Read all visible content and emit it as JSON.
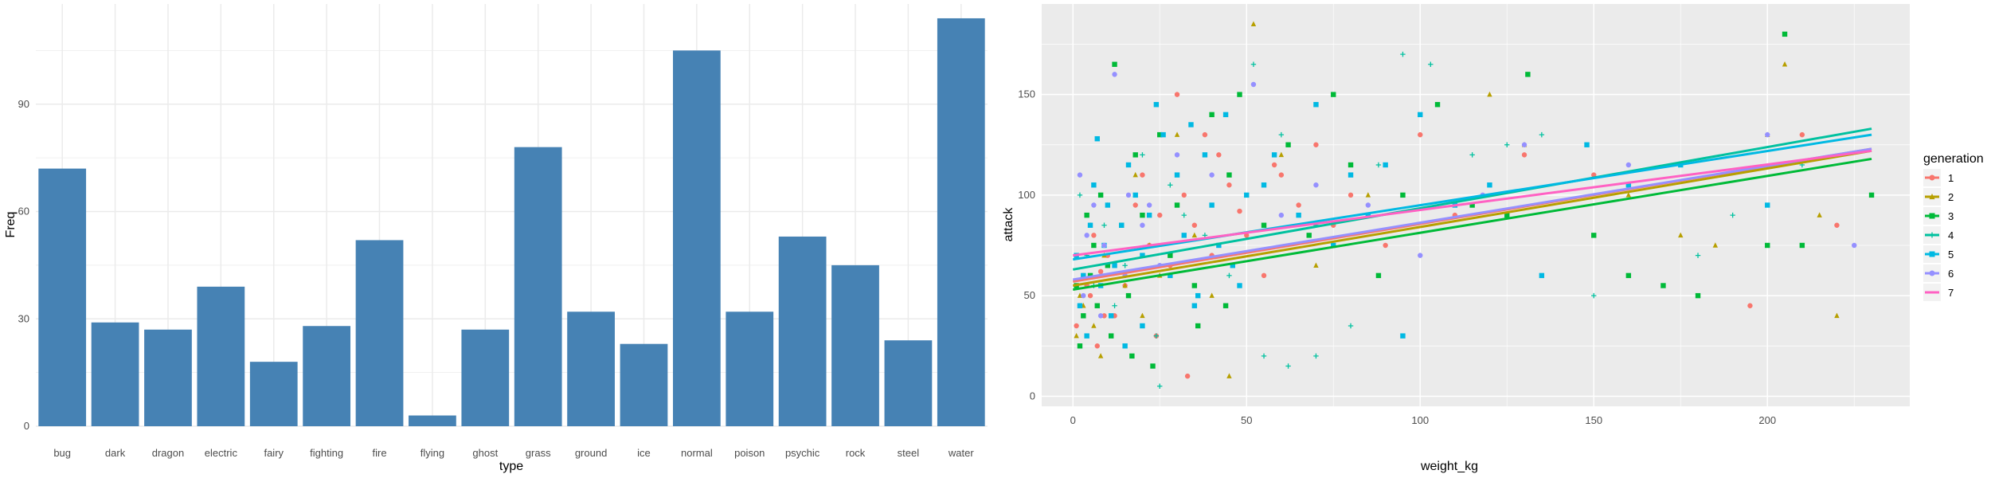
{
  "chart_data": [
    {
      "type": "bar",
      "title": "",
      "xlabel": "type",
      "ylabel": "Freq",
      "categories": [
        "bug",
        "dark",
        "dragon",
        "electric",
        "fairy",
        "fighting",
        "fire",
        "flying",
        "ghost",
        "grass",
        "ground",
        "ice",
        "normal",
        "poison",
        "psychic",
        "rock",
        "steel",
        "water"
      ],
      "values": [
        72,
        29,
        27,
        39,
        18,
        28,
        52,
        3,
        27,
        78,
        32,
        23,
        105,
        32,
        53,
        45,
        24,
        114
      ],
      "ylim": [
        0,
        118
      ],
      "yticks": [
        0,
        30,
        60,
        90
      ],
      "bar_color": "#4682B4",
      "background": "#ffffff",
      "grid": true,
      "grid_color": "#ebebeb"
    },
    {
      "type": "scatter",
      "title": "",
      "xlabel": "weight_kg",
      "ylabel": "attack",
      "xlim": [
        -9,
        241
      ],
      "ylim": [
        -5,
        195
      ],
      "xticks": [
        0,
        50,
        100,
        150,
        200
      ],
      "yticks": [
        0,
        50,
        100,
        150
      ],
      "background": "#EBEBEB",
      "grid": true,
      "grid_color": "#ffffff",
      "legend_title": "generation",
      "legend_position": "right",
      "series": [
        {
          "name": "1",
          "color": "#F8766D",
          "shape": "circle",
          "points": [
            [
              2,
              45
            ],
            [
              3,
              60
            ],
            [
              4,
              55
            ],
            [
              6,
              80
            ],
            [
              8,
              62
            ],
            [
              10,
              70
            ],
            [
              12,
              40
            ],
            [
              14,
              85
            ],
            [
              18,
              95
            ],
            [
              20,
              110
            ],
            [
              22,
              75
            ],
            [
              25,
              90
            ],
            [
              28,
              65
            ],
            [
              30,
              150
            ],
            [
              32,
              100
            ],
            [
              35,
              85
            ],
            [
              38,
              130
            ],
            [
              40,
              70
            ],
            [
              45,
              105
            ],
            [
              48,
              92
            ],
            [
              50,
              80
            ],
            [
              55,
              60
            ],
            [
              60,
              110
            ],
            [
              65,
              95
            ],
            [
              70,
              125
            ],
            [
              80,
              100
            ],
            [
              90,
              75
            ],
            [
              100,
              130
            ],
            [
              110,
              90
            ],
            [
              130,
              120
            ],
            [
              150,
              110
            ],
            [
              195,
              45
            ],
            [
              210,
              130
            ],
            [
              220,
              85
            ],
            [
              1,
              35
            ],
            [
              5,
              50
            ],
            [
              7,
              25
            ],
            [
              9,
              40
            ],
            [
              15,
              55
            ],
            [
              24,
              30
            ],
            [
              33,
              10
            ],
            [
              42,
              120
            ],
            [
              58,
              115
            ],
            [
              75,
              85
            ]
          ],
          "line": [
            0,
            57,
            230,
            123
          ]
        },
        {
          "name": "2",
          "color": "#B79F00",
          "shape": "triangle",
          "points": [
            [
              1,
              30
            ],
            [
              3,
              45
            ],
            [
              5,
              85
            ],
            [
              8,
              20
            ],
            [
              10,
              95
            ],
            [
              12,
              65
            ],
            [
              15,
              55
            ],
            [
              18,
              110
            ],
            [
              22,
              75
            ],
            [
              25,
              60
            ],
            [
              30,
              130
            ],
            [
              35,
              80
            ],
            [
              40,
              50
            ],
            [
              45,
              10
            ],
            [
              52,
              185
            ],
            [
              60,
              120
            ],
            [
              70,
              65
            ],
            [
              85,
              100
            ],
            [
              120,
              150
            ],
            [
              130,
              125
            ],
            [
              160,
              100
            ],
            [
              175,
              80
            ],
            [
              185,
              75
            ],
            [
              200,
              130
            ],
            [
              205,
              165
            ],
            [
              215,
              90
            ],
            [
              220,
              40
            ],
            [
              2,
              50
            ],
            [
              6,
              35
            ],
            [
              9,
              70
            ],
            [
              20,
              40
            ]
          ],
          "line": [
            0,
            55,
            230,
            122
          ]
        },
        {
          "name": "3",
          "color": "#00BA38",
          "shape": "square",
          "points": [
            [
              2,
              25
            ],
            [
              3,
              40
            ],
            [
              4,
              90
            ],
            [
              5,
              60
            ],
            [
              6,
              75
            ],
            [
              8,
              100
            ],
            [
              10,
              65
            ],
            [
              12,
              165
            ],
            [
              14,
              85
            ],
            [
              16,
              50
            ],
            [
              18,
              120
            ],
            [
              20,
              90
            ],
            [
              25,
              130
            ],
            [
              28,
              70
            ],
            [
              30,
              95
            ],
            [
              35,
              55
            ],
            [
              40,
              140
            ],
            [
              45,
              110
            ],
            [
              48,
              150
            ],
            [
              55,
              85
            ],
            [
              62,
              125
            ],
            [
              68,
              80
            ],
            [
              75,
              150
            ],
            [
              80,
              115
            ],
            [
              88,
              60
            ],
            [
              95,
              100
            ],
            [
              105,
              145
            ],
            [
              115,
              95
            ],
            [
              125,
              90
            ],
            [
              131,
              160
            ],
            [
              150,
              80
            ],
            [
              160,
              60
            ],
            [
              170,
              55
            ],
            [
              180,
              50
            ],
            [
              200,
              75
            ],
            [
              205,
              180
            ],
            [
              210,
              75
            ],
            [
              230,
              100
            ],
            [
              1,
              55
            ],
            [
              7,
              45
            ],
            [
              11,
              30
            ],
            [
              17,
              20
            ],
            [
              23,
              15
            ],
            [
              36,
              35
            ],
            [
              44,
              45
            ]
          ],
          "line": [
            0,
            53,
            230,
            118
          ]
        },
        {
          "name": "4",
          "color": "#00C19F",
          "shape": "plus",
          "points": [
            [
              2,
              100
            ],
            [
              4,
              70
            ],
            [
              6,
              55
            ],
            [
              9,
              85
            ],
            [
              12,
              45
            ],
            [
              15,
              65
            ],
            [
              20,
              120
            ],
            [
              24,
              30
            ],
            [
              28,
              105
            ],
            [
              32,
              90
            ],
            [
              38,
              80
            ],
            [
              45,
              60
            ],
            [
              52,
              165
            ],
            [
              60,
              130
            ],
            [
              70,
              85
            ],
            [
              80,
              35
            ],
            [
              88,
              115
            ],
            [
              95,
              170
            ],
            [
              103,
              165
            ],
            [
              115,
              120
            ],
            [
              125,
              125
            ],
            [
              135,
              130
            ],
            [
              150,
              50
            ],
            [
              180,
              70
            ],
            [
              190,
              90
            ],
            [
              210,
              115
            ],
            [
              25,
              5
            ],
            [
              55,
              20
            ],
            [
              62,
              15
            ],
            [
              70,
              20
            ]
          ],
          "line": [
            0,
            63,
            230,
            133
          ]
        },
        {
          "name": "5",
          "color": "#00B9E3",
          "shape": "square",
          "points": [
            [
              1,
              70
            ],
            [
              2,
              45
            ],
            [
              3,
              60
            ],
            [
              4,
              30
            ],
            [
              5,
              85
            ],
            [
              6,
              105
            ],
            [
              7,
              128
            ],
            [
              8,
              55
            ],
            [
              9,
              75
            ],
            [
              10,
              95
            ],
            [
              11,
              40
            ],
            [
              12,
              65
            ],
            [
              14,
              85
            ],
            [
              16,
              115
            ],
            [
              18,
              100
            ],
            [
              20,
              70
            ],
            [
              22,
              90
            ],
            [
              24,
              145
            ],
            [
              26,
              130
            ],
            [
              28,
              60
            ],
            [
              30,
              110
            ],
            [
              32,
              80
            ],
            [
              34,
              135
            ],
            [
              36,
              50
            ],
            [
              38,
              120
            ],
            [
              40,
              95
            ],
            [
              42,
              75
            ],
            [
              44,
              140
            ],
            [
              46,
              65
            ],
            [
              50,
              100
            ],
            [
              55,
              105
            ],
            [
              58,
              120
            ],
            [
              65,
              90
            ],
            [
              70,
              145
            ],
            [
              75,
              75
            ],
            [
              80,
              110
            ],
            [
              85,
              90
            ],
            [
              90,
              115
            ],
            [
              95,
              30
            ],
            [
              100,
              140
            ],
            [
              110,
              95
            ],
            [
              120,
              105
            ],
            [
              135,
              60
            ],
            [
              148,
              125
            ],
            [
              160,
              105
            ],
            [
              175,
              115
            ],
            [
              200,
              95
            ],
            [
              15,
              25
            ],
            [
              20,
              35
            ],
            [
              35,
              45
            ],
            [
              48,
              55
            ]
          ],
          "line": [
            0,
            68,
            230,
            130
          ]
        },
        {
          "name": "6",
          "color": "#9590FF",
          "shape": "circle",
          "points": [
            [
              2,
              110
            ],
            [
              4,
              80
            ],
            [
              6,
              95
            ],
            [
              9,
              75
            ],
            [
              12,
              160
            ],
            [
              16,
              100
            ],
            [
              20,
              85
            ],
            [
              25,
              65
            ],
            [
              30,
              120
            ],
            [
              40,
              110
            ],
            [
              52,
              155
            ],
            [
              60,
              90
            ],
            [
              70,
              105
            ],
            [
              85,
              95
            ],
            [
              100,
              70
            ],
            [
              118,
              100
            ],
            [
              130,
              125
            ],
            [
              160,
              115
            ],
            [
              200,
              130
            ],
            [
              225,
              75
            ],
            [
              3,
              50
            ],
            [
              8,
              40
            ],
            [
              15,
              60
            ],
            [
              22,
              95
            ]
          ],
          "line": [
            0,
            58,
            230,
            123
          ]
        },
        {
          "name": "7",
          "color": "#FF61C3",
          "shape": "line",
          "points": [],
          "line": [
            0,
            70,
            230,
            122
          ]
        }
      ]
    }
  ]
}
